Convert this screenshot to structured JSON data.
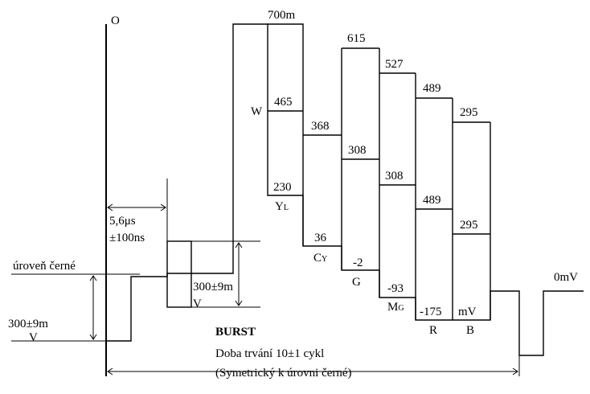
{
  "labels": {
    "origin": "O",
    "black_level": "úroveň černé",
    "sync_amp_a": "300±9m",
    "sync_amp_b": "V",
    "delay_a": "5,6μs",
    "delay_b": "±100ns",
    "burst_amp_a": "300±9m",
    "burst_amp_b": "V",
    "top": "700m",
    "burst_title": "BURST",
    "burst_duration": "Doba trvání 10±1 cykl",
    "burst_symmetry": "(Symetrický k úrovni černé)",
    "zero": "0mV",
    "mv_unit": "mV"
  },
  "bars": [
    {
      "letter": "W",
      "sub": "",
      "top": "700m",
      "mid": "465",
      "bottom": "230"
    },
    {
      "letter": "Y",
      "sub": "L",
      "top": "",
      "mid": "368",
      "bottom": "36"
    },
    {
      "letter": "C",
      "sub": "Y",
      "top": "615",
      "mid": "308",
      "bottom": "-2"
    },
    {
      "letter": "G",
      "sub": "",
      "top": "527",
      "mid": "308",
      "bottom": "-93"
    },
    {
      "letter": "M",
      "sub": "G",
      "top": "489",
      "mid": "489",
      "bottom": "-175"
    },
    {
      "letter": "R",
      "sub": "",
      "top": "295",
      "mid": "295",
      "bottom": ""
    },
    {
      "letter": "B",
      "sub": "",
      "top": "",
      "mid": "",
      "bottom": ""
    }
  ]
}
